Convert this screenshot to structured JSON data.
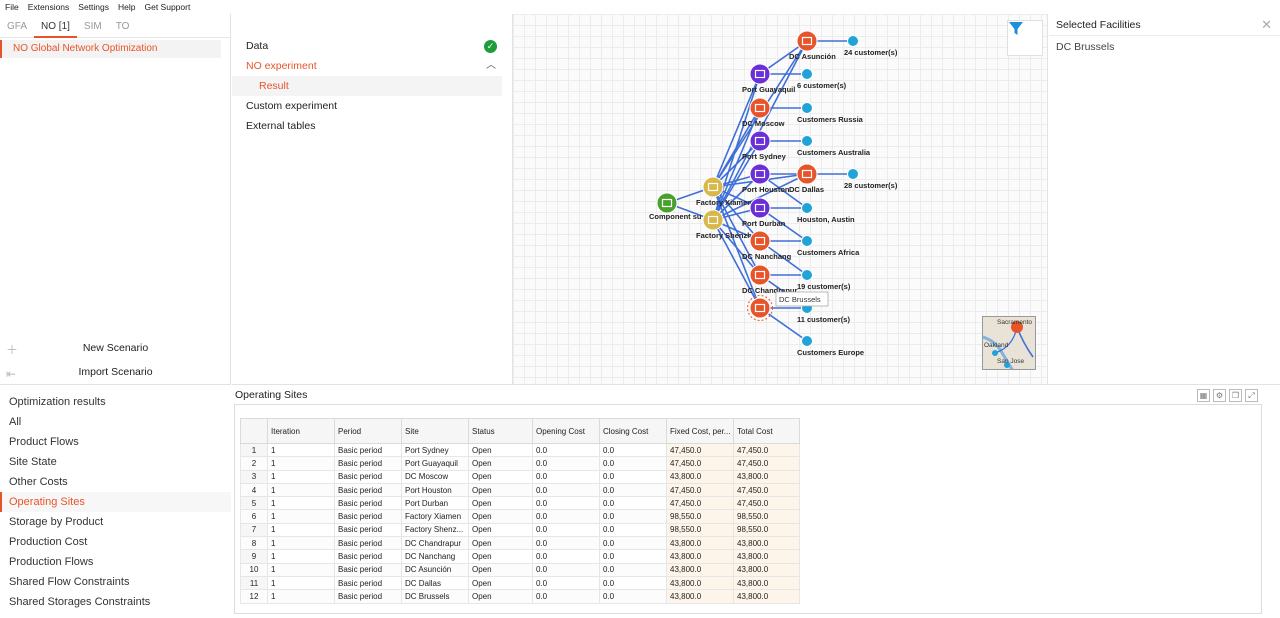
{
  "menu": [
    "File",
    "Extensions",
    "Settings",
    "Help",
    "Get Support"
  ],
  "tabs": [
    "GFA",
    "NO [1]",
    "SIM",
    "TO"
  ],
  "experiment_name": "NO Global Network Optimization",
  "left_actions": {
    "new_scenario": "New Scenario",
    "import_scenario": "Import Scenario"
  },
  "tree": {
    "data": "Data",
    "no_experiment": "NO experiment",
    "result": "Result",
    "custom_experiment": "Custom experiment",
    "external_tables": "External tables"
  },
  "map": {
    "tooltip": "DC Brussels",
    "nodes": [
      {
        "label": "Component su",
        "kind": "supplier"
      },
      {
        "label": "Factory Xiamen",
        "kind": "factory"
      },
      {
        "label": "Factory Shenzh",
        "kind": "factory"
      },
      {
        "label": "DC Asunción",
        "kind": "dc"
      },
      {
        "label": "Port Guayaquil",
        "kind": "port"
      },
      {
        "label": "DC Moscow",
        "kind": "dc"
      },
      {
        "label": "Port Sydney",
        "kind": "port"
      },
      {
        "label": "Port Houston",
        "kind": "port"
      },
      {
        "label": "DC Dallas",
        "kind": "dc"
      },
      {
        "label": "Port Durban",
        "kind": "port"
      },
      {
        "label": "DC Nanchang",
        "kind": "dc"
      },
      {
        "label": "DC Chandrapur",
        "kind": "dc"
      },
      {
        "label": "DC Brussels",
        "kind": "dc"
      },
      {
        "label": "24 customer(s)",
        "kind": "customer"
      },
      {
        "label": "6 customer(s)",
        "kind": "customer"
      },
      {
        "label": "Customers Russia",
        "kind": "customer"
      },
      {
        "label": "Customers Australia",
        "kind": "customer"
      },
      {
        "label": "28 customer(s)",
        "kind": "customer"
      },
      {
        "label": "Houston, Austin",
        "kind": "customer"
      },
      {
        "label": "Customers Africa",
        "kind": "customer"
      },
      {
        "label": "19 customer(s)",
        "kind": "customer"
      },
      {
        "label": "11 customer(s)",
        "kind": "customer"
      },
      {
        "label": "Customers Europe",
        "kind": "customer"
      }
    ],
    "minimap_labels": [
      "Sacramento",
      "Oakland",
      "San Jose"
    ],
    "colors": {
      "dc": "#e8542a",
      "port": "#6a2fd6",
      "factory": "#d9b84a",
      "supplier": "#4aa02c",
      "customer": "#21a3d8",
      "edge": "#3f6fd8"
    }
  },
  "selected_facilities": {
    "title": "Selected Facilities",
    "items": [
      "DC Brussels"
    ]
  },
  "results": {
    "items": [
      "Optimization results",
      "All",
      "Product Flows",
      "Site State",
      "Other Costs",
      "Operating Sites",
      "Storage by Product",
      "Production Cost",
      "Production Flows",
      "Shared Flow Constraints",
      "Shared Storages Constraints"
    ],
    "active_index": 5
  },
  "table": {
    "title": "Operating Sites",
    "columns": [
      "",
      "Iteration",
      "Period",
      "Site",
      "Status",
      "Opening Cost",
      "Closing Cost",
      "Fixed Cost, per...",
      "Total Cost"
    ],
    "rows": [
      [
        "1",
        "1",
        "Basic period",
        "Port Sydney",
        "Open",
        "0.0",
        "0.0",
        "47,450.0",
        "47,450.0"
      ],
      [
        "2",
        "1",
        "Basic period",
        "Port Guayaquil",
        "Open",
        "0.0",
        "0.0",
        "47,450.0",
        "47,450.0"
      ],
      [
        "3",
        "1",
        "Basic period",
        "DC Moscow",
        "Open",
        "0.0",
        "0.0",
        "43,800.0",
        "43,800.0"
      ],
      [
        "4",
        "1",
        "Basic period",
        "Port Houston",
        "Open",
        "0.0",
        "0.0",
        "47,450.0",
        "47,450.0"
      ],
      [
        "5",
        "1",
        "Basic period",
        "Port Durban",
        "Open",
        "0.0",
        "0.0",
        "47,450.0",
        "47,450.0"
      ],
      [
        "6",
        "1",
        "Basic period",
        "Factory Xiamen",
        "Open",
        "0.0",
        "0.0",
        "98,550.0",
        "98,550.0"
      ],
      [
        "7",
        "1",
        "Basic period",
        "Factory Shenz...",
        "Open",
        "0.0",
        "0.0",
        "98,550.0",
        "98,550.0"
      ],
      [
        "8",
        "1",
        "Basic period",
        "DC Chandrapur",
        "Open",
        "0.0",
        "0.0",
        "43,800.0",
        "43,800.0"
      ],
      [
        "9",
        "1",
        "Basic period",
        "DC Nanchang",
        "Open",
        "0.0",
        "0.0",
        "43,800.0",
        "43,800.0"
      ],
      [
        "10",
        "1",
        "Basic period",
        "DC Asunción",
        "Open",
        "0.0",
        "0.0",
        "43,800.0",
        "43,800.0"
      ],
      [
        "11",
        "1",
        "Basic period",
        "DC Dallas",
        "Open",
        "0.0",
        "0.0",
        "43,800.0",
        "43,800.0"
      ],
      [
        "12",
        "1",
        "Basic period",
        "DC Brussels",
        "Open",
        "0.0",
        "0.0",
        "43,800.0",
        "43,800.0"
      ]
    ]
  }
}
